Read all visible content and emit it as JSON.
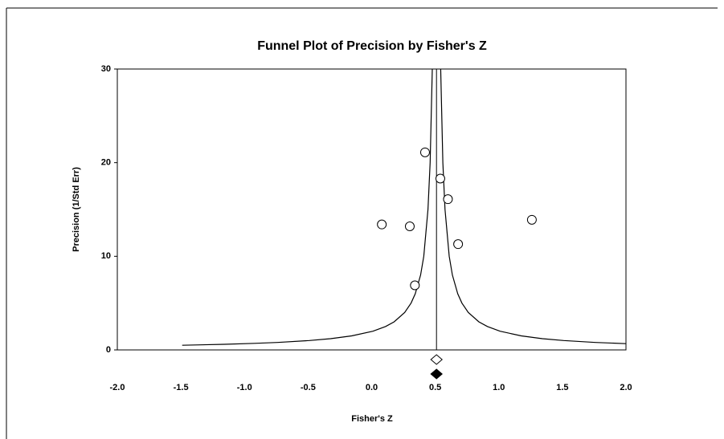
{
  "chart_data": {
    "type": "funnel",
    "title": "Funnel Plot of Precision by Fisher's Z",
    "x_label": "Fisher's Z",
    "y_label": "Precision (1/Std Err)",
    "xlim": [
      -2.0,
      2.0
    ],
    "ylim": [
      0,
      30
    ],
    "xticks": [
      {
        "value": -2.0,
        "label": "-2.0"
      },
      -1.5,
      {
        "value": -1.0,
        "label": "-1.0"
      },
      -0.5,
      {
        "value": 0.0,
        "label": "0.0"
      },
      0.5,
      {
        "value": 1.0,
        "label": "1.0"
      },
      1.5,
      {
        "value": 2.0,
        "label": "2.0"
      }
    ],
    "yticks": [
      0,
      10,
      20,
      30
    ],
    "studies": {
      "x": [
        0.42,
        0.54,
        0.6,
        0.08,
        0.3,
        1.26,
        0.68,
        0.34
      ],
      "y": [
        21.1,
        18.3,
        16.1,
        13.4,
        13.2,
        13.9,
        11.3,
        6.9
      ]
    },
    "summary": {
      "observed": 0.51,
      "imputed": 0.51
    },
    "funnel_left": {
      "x": [
        -1.49,
        -1.157,
        -0.919,
        -0.74,
        -0.49,
        -0.323,
        -0.157,
        0.01,
        0.11,
        0.177,
        0.26,
        0.31,
        0.343,
        0.385,
        0.41,
        0.443,
        0.46,
        0.477
      ],
      "y": [
        0.5,
        0.6,
        0.7,
        0.8,
        1,
        1.2,
        1.5,
        2,
        2.5,
        3,
        4,
        5,
        6,
        8,
        10,
        15,
        20,
        30
      ]
    },
    "funnel_right": {
      "x": [
        2.0,
        1.76,
        1.51,
        1.343,
        1.177,
        1.01,
        0.91,
        0.843,
        0.76,
        0.71,
        0.677,
        0.635,
        0.61,
        0.577,
        0.56,
        0.543
      ],
      "y": [
        0.67,
        0.8,
        1,
        1.2,
        1.5,
        2,
        2.5,
        3,
        4,
        5,
        6,
        8,
        10,
        15,
        20,
        30
      ]
    }
  }
}
